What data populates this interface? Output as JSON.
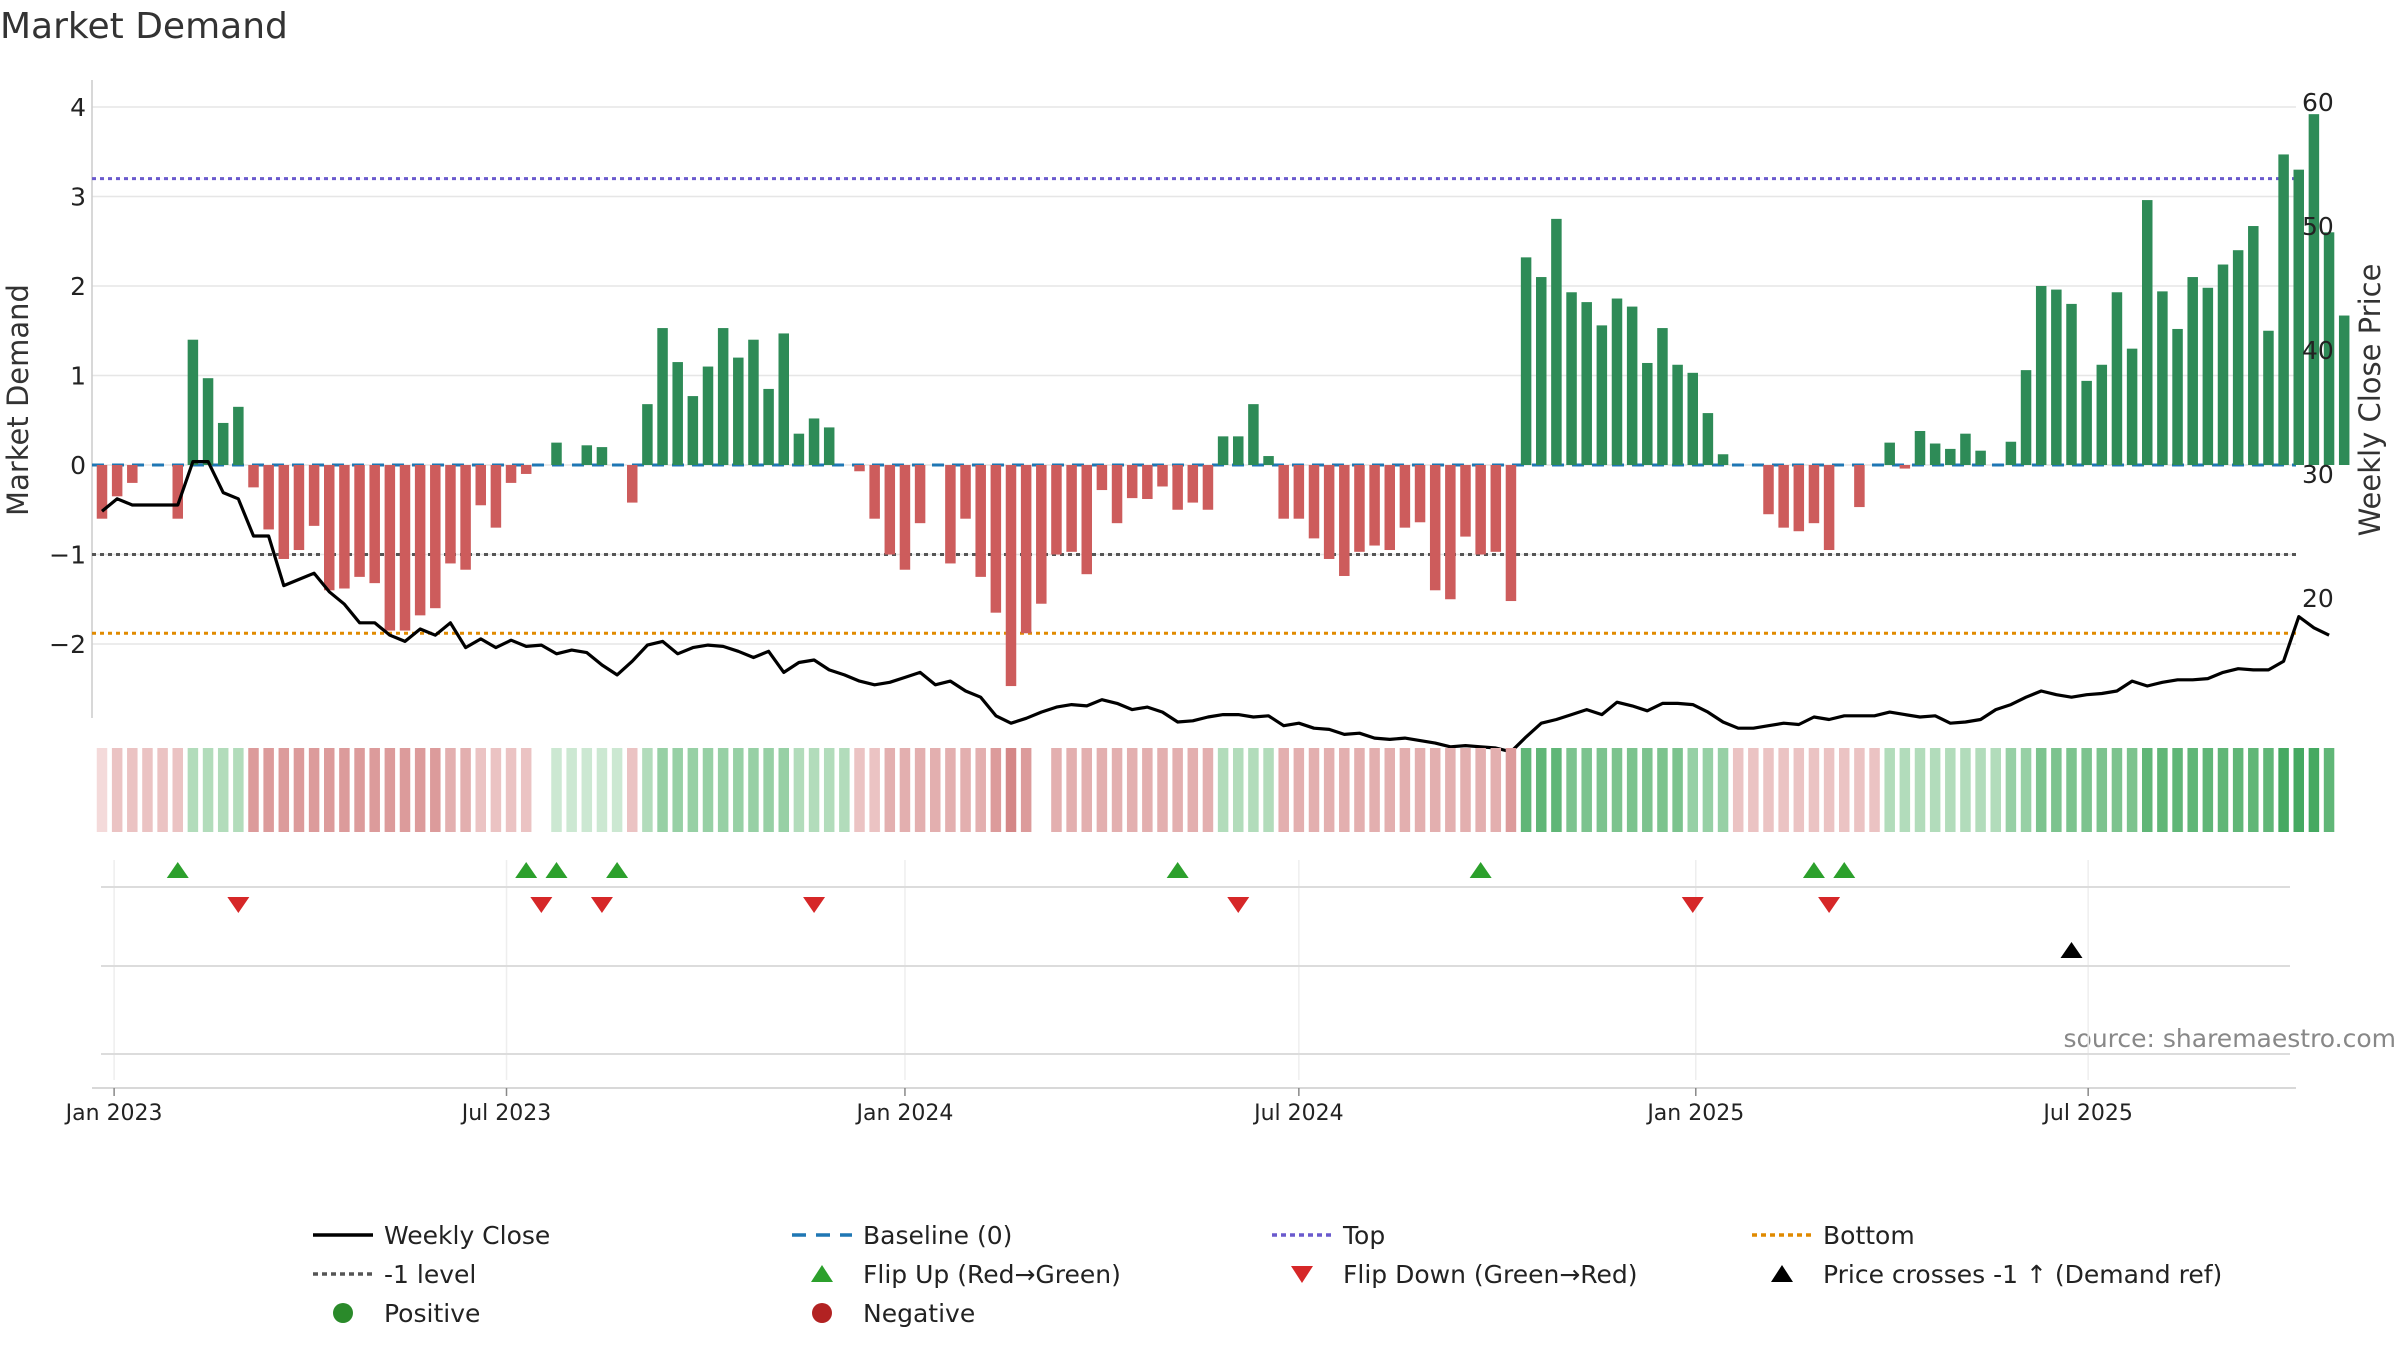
{
  "chart_data": {
    "type": "bar",
    "title": "Market Demand",
    "ylabel_left": "Market Demand",
    "ylabel_right": "Weekly Close Price",
    "ylim_left": [
      -2.8,
      4.2
    ],
    "ylim_right": [
      10,
      60
    ],
    "yticks_left": [
      {
        "v": 4,
        "label": "4"
      },
      {
        "v": 3,
        "label": "3"
      },
      {
        "v": 2,
        "label": "2"
      },
      {
        "v": 1,
        "label": "1"
      },
      {
        "v": 0,
        "label": "0"
      },
      {
        "v": -1,
        "label": "−1"
      },
      {
        "v": -2,
        "label": "−2"
      }
    ],
    "yticks_right": [
      {
        "v": 60,
        "label": "60"
      },
      {
        "v": 50,
        "label": "50"
      },
      {
        "v": 40,
        "label": "40"
      },
      {
        "v": 30,
        "label": "30"
      },
      {
        "v": 20,
        "label": "20"
      }
    ],
    "x_start": "2022-12-26",
    "x_end": "2025-09-22",
    "xticks": [
      {
        "label": "Jan 2023",
        "week": 0.8
      },
      {
        "label": "Jul 2023",
        "week": 26.7
      },
      {
        "label": "Jan 2024",
        "week": 53.0
      },
      {
        "label": "Jul 2024",
        "week": 79.0
      },
      {
        "label": "Jan 2025",
        "week": 105.2
      },
      {
        "label": "Jul 2025",
        "week": 131.1
      }
    ],
    "levels": {
      "baseline": 0,
      "top": 3.2,
      "minus_one": -1,
      "bottom": -1.88
    },
    "demand": [
      -0.6,
      -0.35,
      -0.2,
      0,
      0,
      -0.6,
      1.4,
      0.97,
      0.47,
      0.65,
      -0.25,
      -0.72,
      -1.05,
      -0.95,
      -0.68,
      -1.4,
      -1.38,
      -1.25,
      -1.32,
      -1.85,
      -1.85,
      -1.68,
      -1.6,
      -1.1,
      -1.17,
      -0.45,
      -0.7,
      -0.2,
      -0.1,
      0,
      0.25,
      0,
      0.22,
      0.2,
      0,
      -0.42,
      0.68,
      1.53,
      1.15,
      0.77,
      1.1,
      1.53,
      1.2,
      1.4,
      0.85,
      1.47,
      0.35,
      0.52,
      0.42,
      0,
      -0.07,
      -0.6,
      -1.0,
      -1.17,
      -0.65,
      0,
      -1.1,
      -0.6,
      -1.25,
      -1.65,
      -2.47,
      -1.88,
      -1.55,
      -1.0,
      -0.97,
      -1.22,
      -0.28,
      -0.65,
      -0.37,
      -0.38,
      -0.24,
      -0.5,
      -0.42,
      -0.5,
      0.32,
      0.32,
      0.68,
      0.1,
      -0.6,
      -0.6,
      -0.82,
      -1.05,
      -1.24,
      -0.97,
      -0.9,
      -0.95,
      -0.7,
      -0.64,
      -1.4,
      -1.5,
      -0.8,
      -1.0,
      -0.97,
      -1.52,
      2.32,
      2.1,
      2.75,
      1.93,
      1.82,
      1.56,
      1.86,
      1.77,
      1.14,
      1.53,
      1.12,
      1.03,
      0.58,
      0.12,
      0,
      0,
      -0.55,
      -0.7,
      -0.74,
      -0.65,
      -0.95,
      0,
      -0.47,
      0,
      0.25,
      -0.04,
      0.38,
      0.24,
      0.18,
      0.35,
      0.16,
      0,
      0.26,
      1.06,
      2.0,
      1.96,
      1.8,
      0.94,
      1.12,
      1.93,
      1.3,
      2.96,
      1.94,
      1.52,
      2.1,
      1.98,
      2.24,
      2.4,
      2.67,
      1.5,
      3.47,
      3.3,
      3.92,
      2.6,
      1.67
    ],
    "price": [
      27.0,
      28.0,
      27.5,
      27.5,
      27.5,
      27.5,
      31.0,
      31.0,
      28.5,
      28.0,
      25.0,
      25.0,
      21.0,
      21.5,
      22.0,
      20.5,
      19.5,
      18.0,
      18.0,
      17.0,
      16.5,
      17.5,
      17.0,
      18.0,
      16.0,
      16.7,
      16.0,
      16.6,
      16.1,
      16.2,
      15.5,
      15.8,
      15.6,
      14.6,
      13.8,
      14.9,
      16.2,
      16.5,
      15.5,
      16.0,
      16.2,
      16.1,
      15.7,
      15.2,
      15.7,
      14.0,
      14.8,
      15.0,
      14.2,
      13.8,
      13.3,
      13.0,
      13.2,
      13.6,
      14.0,
      13.0,
      13.3,
      12.5,
      12.0,
      10.5,
      9.9,
      10.3,
      10.8,
      11.2,
      11.4,
      11.3,
      11.8,
      11.5,
      11.0,
      11.2,
      10.8,
      10.0,
      10.1,
      10.4,
      10.6,
      10.6,
      10.4,
      10.5,
      9.7,
      9.9,
      9.5,
      9.4,
      9.0,
      9.1,
      8.7,
      8.6,
      8.7,
      8.5,
      8.3,
      8.0,
      8.1,
      8.0,
      7.9,
      7.6,
      8.8,
      9.9,
      10.2,
      10.6,
      11.0,
      10.6,
      11.6,
      11.3,
      10.9,
      11.5,
      11.5,
      11.4,
      10.8,
      10.0,
      9.5,
      9.5,
      9.7,
      9.9,
      9.8,
      10.4,
      10.2,
      10.5,
      10.5,
      10.5,
      10.8,
      10.6,
      10.4,
      10.5,
      9.9,
      10.0,
      10.2,
      11.0,
      11.4,
      12.0,
      12.5,
      12.2,
      12.0,
      12.2,
      12.3,
      12.5,
      13.3,
      12.9,
      13.2,
      13.4,
      13.4,
      13.5,
      14.0,
      14.3,
      14.2,
      14.2,
      14.9,
      18.5,
      17.6,
      17.0
    ],
    "cells": [
      [
        8,
        -1
      ],
      [
        1,
        -1
      ],
      [
        1,
        -1
      ],
      [
        1,
        -1
      ],
      [
        1,
        -1
      ],
      [
        1,
        -1
      ],
      [
        1,
        1
      ],
      [
        1,
        1
      ],
      [
        1,
        1
      ],
      [
        1,
        1
      ],
      [
        3,
        -1
      ],
      [
        3,
        -1
      ],
      [
        3,
        -1
      ],
      [
        3,
        -1
      ],
      [
        3,
        -1
      ],
      [
        3,
        -1
      ],
      [
        3,
        -1
      ],
      [
        3,
        -1
      ],
      [
        3,
        -1
      ],
      [
        3,
        -1
      ],
      [
        3,
        -1
      ],
      [
        3,
        -1
      ],
      [
        3,
        -1
      ],
      [
        2,
        -1
      ],
      [
        2,
        -1
      ],
      [
        1,
        -1
      ],
      [
        1,
        -1
      ],
      [
        1,
        -1
      ],
      [
        1,
        -1
      ],
      [
        0,
        0
      ],
      [
        0,
        1
      ],
      [
        0,
        1
      ],
      [
        0,
        1
      ],
      [
        0,
        1
      ],
      [
        0,
        1
      ],
      [
        1,
        -1
      ],
      [
        1,
        1
      ],
      [
        2,
        1
      ],
      [
        2,
        1
      ],
      [
        2,
        1
      ],
      [
        2,
        1
      ],
      [
        2,
        1
      ],
      [
        2,
        1
      ],
      [
        2,
        1
      ],
      [
        2,
        1
      ],
      [
        2,
        1
      ],
      [
        1,
        1
      ],
      [
        1,
        1
      ],
      [
        1,
        1
      ],
      [
        1,
        1
      ],
      [
        1,
        -1
      ],
      [
        1,
        -1
      ],
      [
        2,
        -1
      ],
      [
        2,
        -1
      ],
      [
        2,
        -1
      ],
      [
        2,
        -1
      ],
      [
        2,
        -1
      ],
      [
        2,
        -1
      ],
      [
        2,
        -1
      ],
      [
        3,
        -1
      ],
      [
        4,
        -1
      ],
      [
        3,
        -1
      ],
      [
        0,
        0
      ],
      [
        2,
        -1
      ],
      [
        2,
        -1
      ],
      [
        2,
        -1
      ],
      [
        2,
        -1
      ],
      [
        2,
        -1
      ],
      [
        2,
        -1
      ],
      [
        2,
        -1
      ],
      [
        2,
        -1
      ],
      [
        2,
        -1
      ],
      [
        2,
        -1
      ],
      [
        2,
        -1
      ],
      [
        1,
        1
      ],
      [
        1,
        1
      ],
      [
        1,
        1
      ],
      [
        1,
        1
      ],
      [
        2,
        -1
      ],
      [
        2,
        -1
      ],
      [
        2,
        -1
      ],
      [
        2,
        -1
      ],
      [
        2,
        -1
      ],
      [
        2,
        -1
      ],
      [
        2,
        -1
      ],
      [
        2,
        -1
      ],
      [
        2,
        -1
      ],
      [
        2,
        -1
      ],
      [
        2,
        -1
      ],
      [
        2,
        -1
      ],
      [
        2,
        -1
      ],
      [
        2,
        -1
      ],
      [
        2,
        -1
      ],
      [
        3,
        -1
      ],
      [
        4,
        1
      ],
      [
        4,
        1
      ],
      [
        4,
        1
      ],
      [
        3,
        1
      ],
      [
        3,
        1
      ],
      [
        3,
        1
      ],
      [
        3,
        1
      ],
      [
        3,
        1
      ],
      [
        3,
        1
      ],
      [
        3,
        1
      ],
      [
        3,
        1
      ],
      [
        2,
        1
      ],
      [
        2,
        1
      ],
      [
        2,
        1
      ],
      [
        1,
        -1
      ],
      [
        1,
        -1
      ],
      [
        1,
        -1
      ],
      [
        1,
        -1
      ],
      [
        1,
        -1
      ],
      [
        1,
        -1
      ],
      [
        1,
        -1
      ],
      [
        1,
        -1
      ],
      [
        1,
        -1
      ],
      [
        1,
        -1
      ],
      [
        1,
        1
      ],
      [
        1,
        1
      ],
      [
        1,
        1
      ],
      [
        1,
        1
      ],
      [
        1,
        1
      ],
      [
        1,
        1
      ],
      [
        1,
        1
      ],
      [
        1,
        1
      ],
      [
        2,
        1
      ],
      [
        2,
        1
      ],
      [
        3,
        1
      ],
      [
        3,
        1
      ],
      [
        3,
        1
      ],
      [
        3,
        1
      ],
      [
        3,
        1
      ],
      [
        3,
        1
      ],
      [
        3,
        1
      ],
      [
        4,
        1
      ],
      [
        4,
        1
      ],
      [
        4,
        1
      ],
      [
        4,
        1
      ],
      [
        4,
        1
      ],
      [
        4,
        1
      ],
      [
        4,
        1
      ],
      [
        4,
        1
      ],
      [
        4,
        1
      ],
      [
        5,
        1
      ],
      [
        5,
        1
      ],
      [
        6,
        1
      ],
      [
        4,
        1
      ]
    ],
    "flip_up_weeks": [
      5,
      28,
      30,
      34,
      71,
      91,
      113,
      115
    ],
    "flip_down_weeks": [
      9,
      29,
      33,
      47,
      75,
      105,
      114
    ],
    "price_cross_weeks": [
      130
    ],
    "legend": [
      {
        "label": "Weekly Close",
        "kind": "line-solid",
        "color": "#000000"
      },
      {
        "label": "Baseline (0)",
        "kind": "line-dash",
        "color": "#1f77b4"
      },
      {
        "label": "Top",
        "kind": "line-dot",
        "color": "#6a5acd"
      },
      {
        "label": "Bottom",
        "kind": "line-dot",
        "color": "#e08a00"
      },
      {
        "label": "-1 level",
        "kind": "line-dot",
        "color": "#555555"
      },
      {
        "label": "Flip Up (Red→Green)",
        "kind": "tri-up",
        "color": "#2ca02c"
      },
      {
        "label": "Flip Down (Green→Red)",
        "kind": "tri-down",
        "color": "#d62728"
      },
      {
        "label": "Price crosses -1 ↑ (Demand ref)",
        "kind": "tri-up",
        "color": "#000000"
      },
      {
        "label": "Positive",
        "kind": "dot",
        "color": "#2a8a2a"
      },
      {
        "label": "Negative",
        "kind": "dot",
        "color": "#b22222"
      }
    ],
    "source": "source: sharemaestro.com",
    "colors": {
      "positive_bar": "#2e8b57",
      "negative_bar": "#cd5c5c",
      "price": "#000000",
      "grid": "#e6e6e6"
    }
  }
}
